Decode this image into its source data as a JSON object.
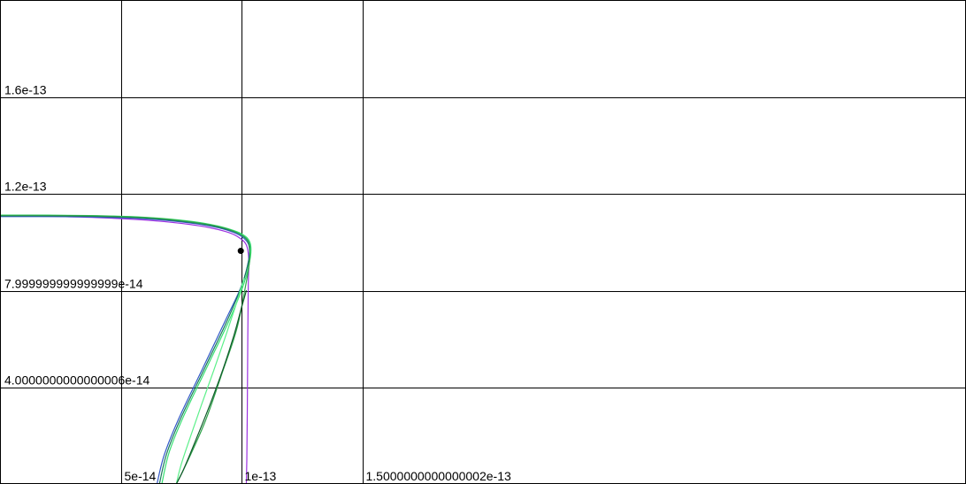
{
  "chart_data": {
    "type": "line",
    "title": "",
    "xlabel": "",
    "ylabel": "",
    "xlim": [
      0,
      2e-13
    ],
    "ylim": [
      0,
      2e-13
    ],
    "grid": true,
    "x_ticks": [
      {
        "value": 5e-14,
        "label": "5e-14"
      },
      {
        "value": 1e-13,
        "label": "1e-13"
      },
      {
        "value": 1.5000000000000002e-13,
        "label": "1.5000000000000002e-13"
      }
    ],
    "y_ticks": [
      {
        "value": 4.0000000000000006e-14,
        "label": "4.0000000000000006e-14"
      },
      {
        "value": 7.999999999999999e-14,
        "label": "7.999999999999999e-14"
      },
      {
        "value": 1.2e-13,
        "label": "1.2e-13"
      },
      {
        "value": 1.6e-13,
        "label": "1.6e-13"
      }
    ],
    "point": {
      "x": 9.97e-14,
      "y": 9.65e-14,
      "color": "#000000"
    },
    "series": [
      {
        "color": "#9b30e0",
        "x": [
          0,
          2e-14,
          4e-14,
          6e-14,
          7.5e-14,
          8.7e-14,
          9.5e-14,
          9.9e-14,
          1.02e-13,
          1.03e-13,
          1.028e-13,
          1.026e-13,
          1.024e-13,
          1.022e-13,
          1.02e-13
        ],
        "y": [
          1.11e-13,
          1.108e-13,
          1.103e-13,
          1.093e-13,
          1.079e-13,
          1.061e-13,
          1.04e-13,
          1.02e-13,
          9.9e-14,
          9.3e-14,
          8.2e-14,
          6e-14,
          3e-14,
          1e-14,
          0
        ]
      },
      {
        "color": "#3358c8",
        "x": [
          0,
          2e-14,
          4e-14,
          6e-14,
          7.5e-14,
          8.7e-14,
          9.5e-14,
          1e-13,
          1.03e-13,
          1.03e-13,
          1e-13,
          9.3e-14,
          8.4e-14,
          7.4e-14,
          6.8e-14,
          6.5e-14
        ],
        "y": [
          1.107e-13,
          1.107e-13,
          1.105e-13,
          1.098e-13,
          1.085e-13,
          1.068e-13,
          1.048e-13,
          1.025e-13,
          9.9e-14,
          9.3e-14,
          8.2e-14,
          6.7e-14,
          4.8e-14,
          2.7e-14,
          1.2e-14,
          0
        ]
      },
      {
        "color": "#1a7a5a",
        "x": [
          0,
          2e-14,
          4e-14,
          6e-14,
          7.5e-14,
          8.7e-14,
          9.5e-14,
          1.005e-13,
          1.032e-13,
          1.032e-13,
          1.002e-13,
          9.4e-14,
          8.5e-14,
          7.5e-14,
          6.9e-14,
          6.6e-14
        ],
        "y": [
          1.11e-13,
          1.11e-13,
          1.108e-13,
          1.101e-13,
          1.088e-13,
          1.071e-13,
          1.051e-13,
          1.028e-13,
          9.95e-14,
          9.35e-14,
          8.25e-14,
          6.75e-14,
          4.85e-14,
          2.75e-14,
          1.25e-14,
          0
        ]
      },
      {
        "color": "#35e070",
        "x": [
          0,
          2e-14,
          4e-14,
          6e-14,
          7.5e-14,
          8.7e-14,
          9.5e-14,
          1.005e-13,
          1.035e-13,
          1.037e-13,
          1.01e-13,
          9.5e-14,
          8.6e-14,
          7.6e-14,
          7e-14,
          6.7e-14
        ],
        "y": [
          1.113e-13,
          1.113e-13,
          1.111e-13,
          1.104e-13,
          1.092e-13,
          1.075e-13,
          1.055e-13,
          1.033e-13,
          1e-13,
          9.4e-14,
          8.3e-14,
          6.8e-14,
          4.9e-14,
          2.8e-14,
          1.3e-14,
          0
        ]
      },
      {
        "color": "#2fa24a",
        "x": [
          0,
          2e-14,
          4e-14,
          6e-14,
          7.5e-14,
          8.7e-14,
          9.5e-14,
          1e-13,
          1.03e-13,
          1.033e-13,
          1.015e-13,
          9.8e-14,
          9.2e-14,
          8.5e-14,
          7.7e-14,
          7.3e-14
        ],
        "y": [
          1.112e-13,
          1.112e-13,
          1.11e-13,
          1.103e-13,
          1.09e-13,
          1.073e-13,
          1.053e-13,
          1.03e-13,
          9.95e-14,
          9.2e-14,
          8.1e-14,
          6.4e-14,
          4.6e-14,
          2.6e-14,
          8e-15,
          0
        ]
      },
      {
        "color": "#5cf08a",
        "x": [
          1.01e-13,
          9.95e-14,
          9.7e-14,
          9.3e-14,
          8.85e-14,
          8.35e-14,
          7.9e-14,
          7.5e-14,
          7.3e-14
        ],
        "y": [
          8.5e-14,
          8e-14,
          7.2e-14,
          6e-14,
          4.7e-14,
          3.3e-14,
          2e-14,
          8e-15,
          0
        ]
      },
      {
        "color": "#0f5a2a",
        "x": [
          1.02e-13,
          1e-13,
          9.7e-14,
          9.25e-14,
          8.7e-14,
          8.1e-14,
          7.6e-14,
          7.3e-14
        ],
        "y": [
          8e-14,
          7.3e-14,
          6.2e-14,
          4.8e-14,
          3.3e-14,
          1.8e-14,
          6e-15,
          0
        ]
      }
    ]
  }
}
